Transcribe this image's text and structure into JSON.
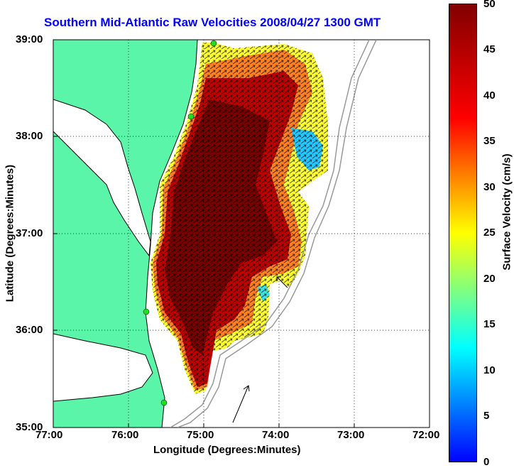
{
  "title": "Southern Mid-Atlantic Raw Velocities 2008/04/27 1300 GMT",
  "x_axis": {
    "label": "Longitude (Degrees:Minutes)",
    "ticks": [
      "77:00",
      "76:00",
      "75:00",
      "74:00",
      "73:00",
      "72:00"
    ]
  },
  "y_axis": {
    "label": "Latitude (Degrees:Minutes)",
    "ticks": [
      "39:00",
      "38:00",
      "37:00",
      "36:00",
      "35:00"
    ]
  },
  "colorbar": {
    "label": "Surface Velocity (cm/s)",
    "ticks": [
      "50",
      "45",
      "40",
      "35",
      "30",
      "25",
      "20",
      "15",
      "10",
      "5",
      "0"
    ],
    "range": [
      0,
      50
    ]
  },
  "colors": {
    "land": "#5af5a8",
    "water": "#ffffff",
    "gridline": "#000000",
    "title": "#0000ff",
    "station": "#22dd22"
  },
  "map_region": {
    "lon_range": [
      -77,
      -72
    ],
    "lat_range": [
      35,
      39
    ],
    "grid": "dotted"
  }
}
